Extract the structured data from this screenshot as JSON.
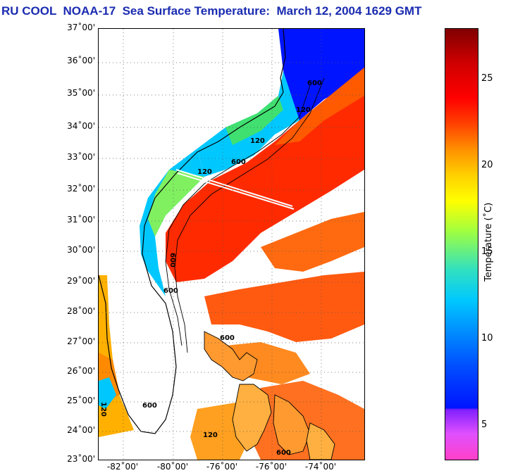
{
  "title": "RU COOL  NOAA-17  Sea Surface Temperature:  March 12, 2004 1629 GMT",
  "map": {
    "latitude_labels": [
      "37˚00'",
      "36˚00'",
      "35˚00'",
      "34˚00'",
      "33˚00'",
      "32˚00'",
      "31˚00'",
      "30˚00'",
      "29˚00'",
      "28˚00'",
      "27˚00'",
      "26˚00'",
      "25˚00'",
      "24˚00'",
      "23˚00'"
    ],
    "longitude_labels": [
      "-82˚00'",
      "-80˚00'",
      "-76˚00'",
      "-76˚00'",
      "-74˚00'"
    ],
    "contour_labels": [
      "600",
      "120",
      "120",
      "600",
      "120",
      "600",
      "600",
      "120",
      "600",
      "120",
      "600",
      "600"
    ],
    "colors": {
      "land": "#ffffff",
      "gulf_stream": "#ff2a00",
      "shelf_warm": "#ff8a00",
      "coastal_cool": "#00c8ff",
      "north_cold": "#0014ff",
      "graticule": "#555555"
    }
  },
  "colorbar": {
    "label": "Temperature (˚C)",
    "ticks": [
      "25",
      "20",
      "15",
      "10",
      "5"
    ]
  }
}
